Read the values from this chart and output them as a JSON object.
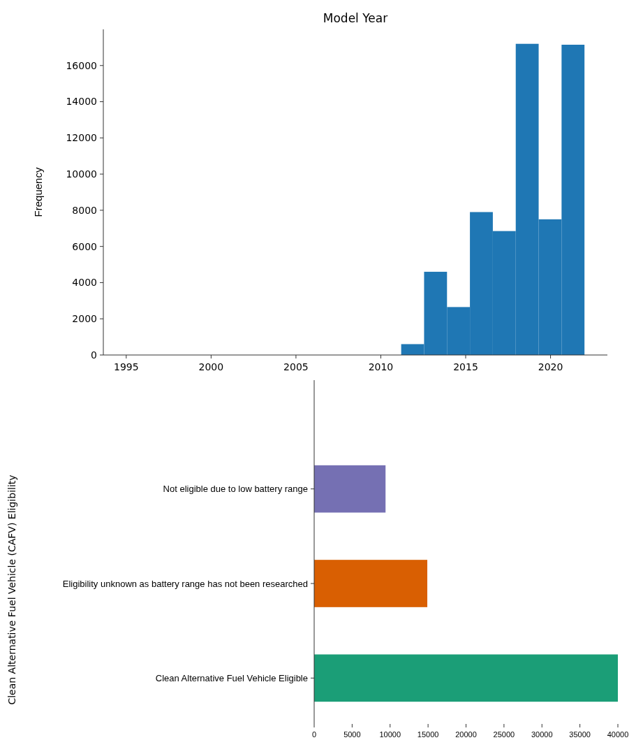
{
  "chart_data": [
    {
      "type": "histogram",
      "title": "Model Year",
      "ylabel": "Frequency",
      "bins": [
        1995,
        1996.35,
        1997.7,
        1999.05,
        2000.4,
        2001.75,
        2003.1,
        2004.45,
        2005.8,
        2007.15,
        2008.5,
        2009.85,
        2011.2,
        2012.55,
        2013.9,
        2015.25,
        2016.6,
        2017.95,
        2019.3,
        2020.65,
        2022
      ],
      "values": [
        0,
        0,
        0,
        0,
        0,
        0,
        0,
        0,
        0,
        0,
        0,
        0,
        600,
        4600,
        2650,
        7900,
        6850,
        17200,
        7500,
        17150
      ],
      "color": "#1f77b4",
      "xlim": [
        1993.65,
        2023.35
      ],
      "xticks": [
        1995,
        2000,
        2005,
        2010,
        2015,
        2020
      ],
      "ylim": [
        0,
        18000
      ],
      "yticks": [
        0,
        2000,
        4000,
        6000,
        8000,
        10000,
        12000,
        14000,
        16000
      ],
      "grid": false
    },
    {
      "type": "bar",
      "orientation": "horizontal",
      "ylabel": "Clean Alternative Fuel Vehicle (CAFV) Eligibility",
      "categories": [
        "Not eligible due to low battery range",
        "Eligibility unknown as battery range has not been researched",
        "Clean Alternative Fuel Vehicle Eligible"
      ],
      "values": [
        9400,
        14900,
        40000
      ],
      "colors": [
        "#7570b3",
        "#d95f02",
        "#1b9e77"
      ],
      "xlim": [
        0,
        40000
      ],
      "xticks": [
        0,
        5000,
        10000,
        15000,
        20000,
        25000,
        30000,
        35000,
        40000
      ],
      "grid": false
    }
  ]
}
